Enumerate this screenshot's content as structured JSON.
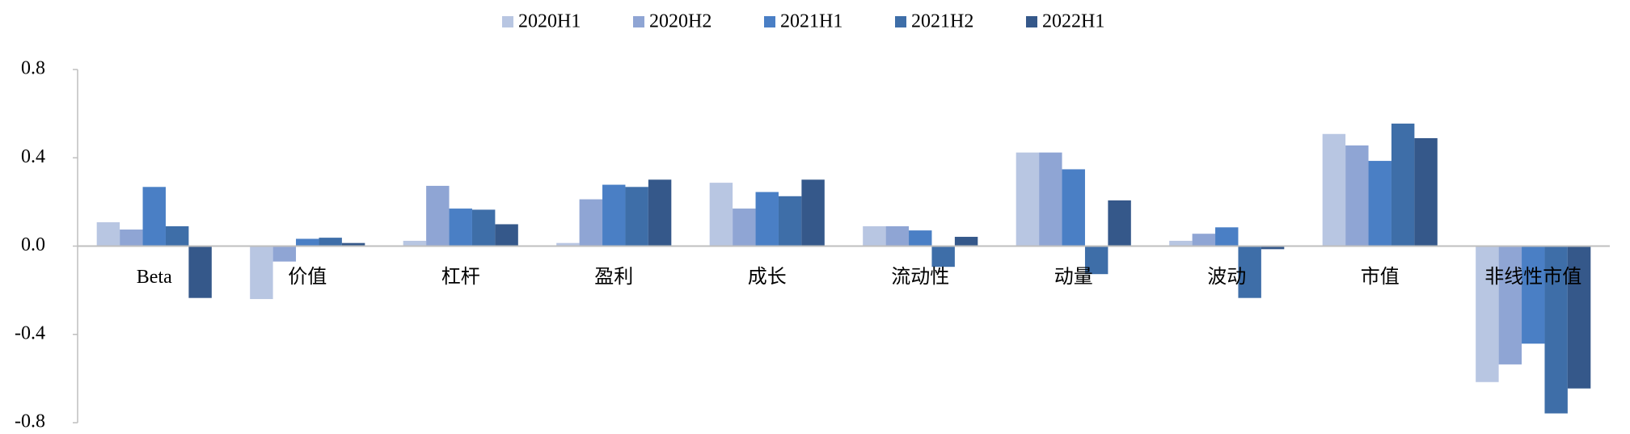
{
  "chart_data": {
    "type": "bar",
    "categories": [
      "Beta",
      "价值",
      "杠杆",
      "盈利",
      "成长",
      "流动性",
      "动量",
      "波动",
      "市值",
      "非线性市值"
    ],
    "series": [
      {
        "name": "2020H1",
        "color": "#b8c6e2",
        "values": [
          0.108,
          -0.24,
          0.024,
          0.014,
          0.287,
          0.09,
          0.424,
          0.024,
          0.508,
          -0.616
        ]
      },
      {
        "name": "2020H2",
        "color": "#8fa5d4",
        "values": [
          0.075,
          -0.07,
          0.273,
          0.212,
          0.17,
          0.09,
          0.424,
          0.056,
          0.456,
          -0.536
        ]
      },
      {
        "name": "2021H1",
        "color": "#4a7fc5",
        "values": [
          0.268,
          0.033,
          0.17,
          0.278,
          0.245,
          0.071,
          0.348,
          0.085,
          0.386,
          -0.442
        ]
      },
      {
        "name": "2021H2",
        "color": "#3e6ea8",
        "values": [
          0.09,
          0.038,
          0.165,
          0.268,
          0.226,
          -0.094,
          -0.127,
          -0.235,
          0.555,
          -0.758
        ]
      },
      {
        "name": "2022H1",
        "color": "#35588a",
        "values": [
          -0.235,
          0.014,
          0.099,
          0.301,
          0.301,
          0.042,
          0.207,
          -0.014,
          0.489,
          -0.645
        ]
      }
    ],
    "ylim": [
      -0.8,
      0.8
    ],
    "yticks": [
      0.8,
      0.4,
      {
        "value": 0,
        "label": "0.0"
      },
      -0.4,
      -0.8
    ],
    "grid": false,
    "legend": "top"
  }
}
